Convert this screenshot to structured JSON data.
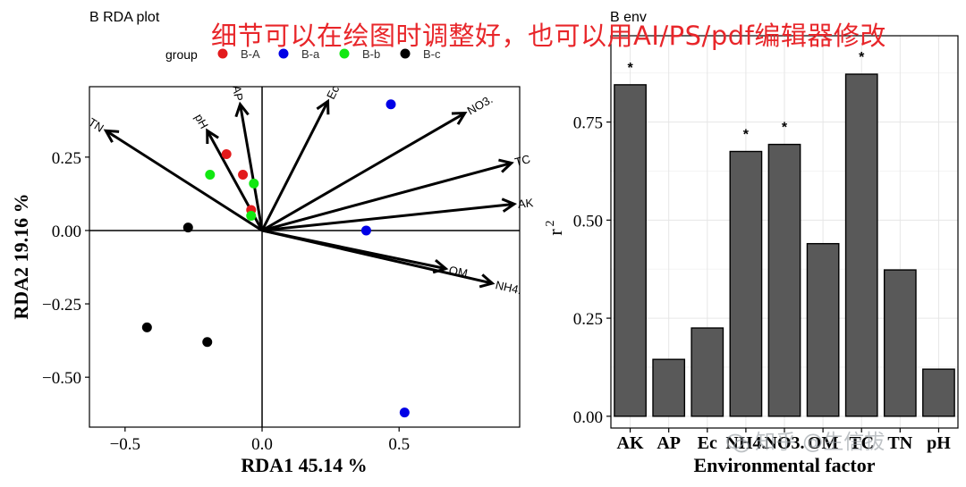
{
  "left_panel": {
    "title": "B RDA plot",
    "legend_title": "group",
    "xlabel": "RDA1 45.14  %",
    "ylabel": "RDA2 19.16  %"
  },
  "right_panel": {
    "title": "B env",
    "xlabel": "Environmental factor",
    "ylabel": "r",
    "ylabel_sup": "2"
  },
  "annotation_text": "细节可以在绘图时调整好，也可以用AI/PS/pdf编辑器修改",
  "watermark_text": "知乎 @生信拔",
  "colors": {
    "B-A": "#e31a1c",
    "B-a": "#0000e6",
    "B-b": "#11e811",
    "B-c": "#000000",
    "bar_fill": "#595959",
    "annotation": "#e8262a"
  },
  "chart_data": [
    {
      "type": "scatter",
      "xlim": [
        -0.63,
        0.94
      ],
      "ylim": [
        -0.67,
        0.49
      ],
      "xticks": [
        -0.5,
        0.0,
        0.5
      ],
      "xtick_labels": [
        "−0.5",
        "0.0",
        "0.5"
      ],
      "yticks": [
        -0.5,
        -0.25,
        0.0,
        0.25
      ],
      "ytick_labels": [
        "−0.50",
        "−0.25",
        "0.00",
        "0.25"
      ],
      "legend": {
        "placement": "top",
        "entries": [
          "B-A",
          "B-a",
          "B-b",
          "B-c"
        ]
      },
      "series": [
        {
          "name": "B-A",
          "points": [
            [
              -0.13,
              0.26
            ],
            [
              -0.07,
              0.19
            ],
            [
              -0.04,
              0.07
            ]
          ]
        },
        {
          "name": "B-a",
          "points": [
            [
              0.47,
              0.43
            ],
            [
              0.38,
              0.0
            ],
            [
              0.52,
              -0.62
            ]
          ]
        },
        {
          "name": "B-b",
          "points": [
            [
              -0.19,
              0.19
            ],
            [
              -0.03,
              0.16
            ],
            [
              -0.04,
              0.05
            ]
          ]
        },
        {
          "name": "B-c",
          "points": [
            [
              -0.27,
              0.01
            ],
            [
              -0.42,
              -0.33
            ],
            [
              -0.2,
              -0.38
            ]
          ]
        }
      ],
      "arrows": [
        {
          "label": "TN",
          "x": -0.57,
          "y": 0.34
        },
        {
          "label": "pH",
          "x": -0.2,
          "y": 0.34
        },
        {
          "label": "AP",
          "x": -0.08,
          "y": 0.43
        },
        {
          "label": "Ec",
          "x": 0.24,
          "y": 0.44
        },
        {
          "label": "NO3.",
          "x": 0.74,
          "y": 0.4
        },
        {
          "label": "TC",
          "x": 0.91,
          "y": 0.23
        },
        {
          "label": "AK",
          "x": 0.92,
          "y": 0.09
        },
        {
          "label": "OM",
          "x": 0.67,
          "y": -0.13
        },
        {
          "label": "NH4.",
          "x": 0.84,
          "y": -0.18
        }
      ]
    },
    {
      "type": "bar",
      "categories": [
        "AK",
        "AP",
        "Ec",
        "NH4.",
        "NO3.",
        "OM",
        "TC",
        "TN",
        "pH"
      ],
      "xtick_labels": [
        "AK",
        "AP",
        "Ec",
        "NH4.",
        "NO3.",
        "OM",
        "TC",
        "TN",
        "pH"
      ],
      "values": [
        0.845,
        0.145,
        0.225,
        0.675,
        0.693,
        0.44,
        0.872,
        0.373,
        0.12
      ],
      "significance": [
        "*",
        "",
        "",
        "*",
        "*",
        "",
        "*",
        "",
        ""
      ],
      "ylim": [
        -0.03,
        0.97
      ],
      "yticks": [
        0.0,
        0.25,
        0.5,
        0.75
      ],
      "ytick_labels": [
        "0.00",
        "0.25",
        "0.50",
        "0.75"
      ],
      "grid": true
    }
  ]
}
